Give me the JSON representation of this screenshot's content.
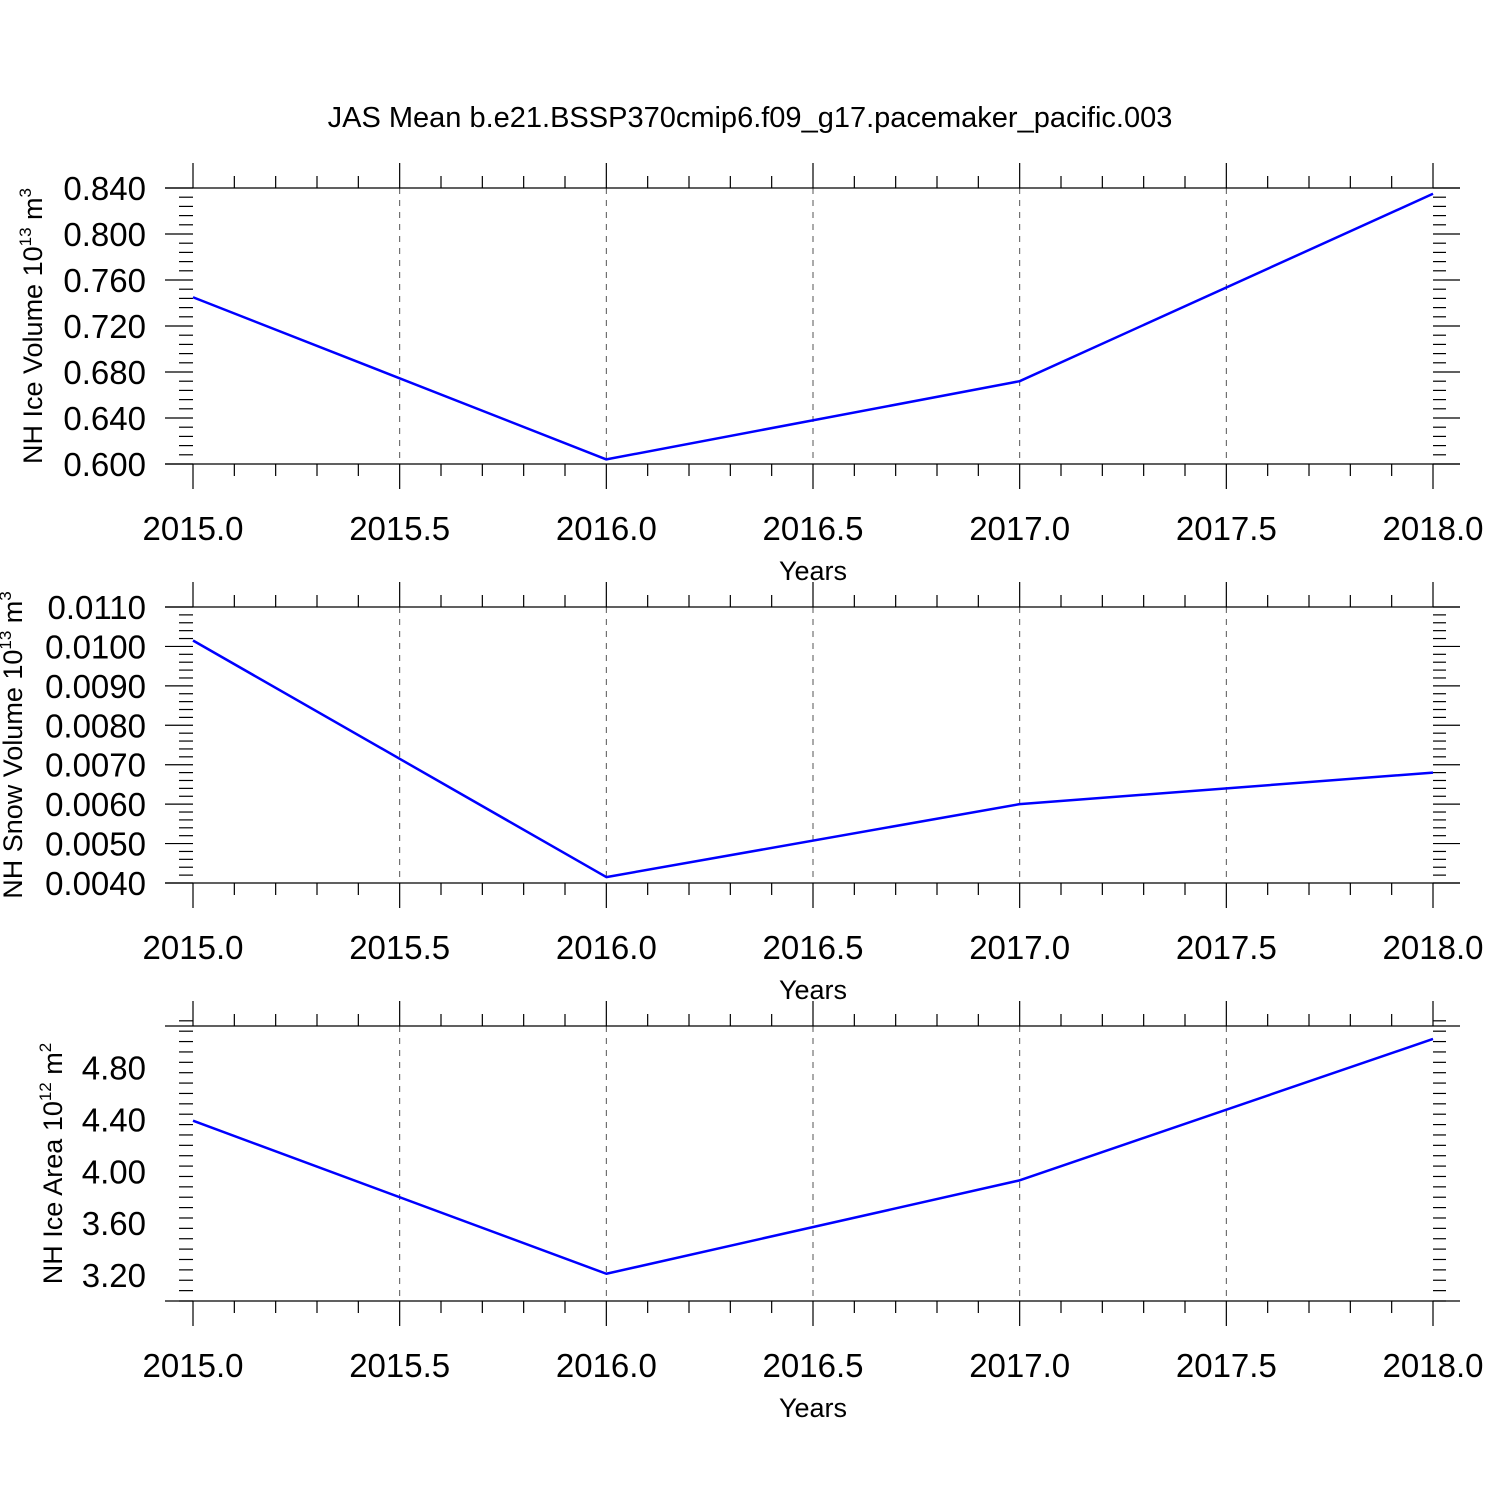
{
  "title": "JAS Mean b.e21.BSSP370cmip6.f09_g17.pacemaker_pacific.003",
  "colors": {
    "series": "#0000ff",
    "grid": "#555555",
    "axis": "#000000"
  },
  "chart_data": [
    {
      "type": "line",
      "xlabel": "Years",
      "ylabel": "NH Ice Volume 10",
      "ylabel_exp": "13",
      "ylabel_unit": "m",
      "ylabel_unit_exp": "3",
      "x": [
        2015.0,
        2016.0,
        2017.0,
        2018.0
      ],
      "series": [
        {
          "values": [
            0.745,
            0.604,
            0.672,
            0.835
          ]
        }
      ],
      "xlim": [
        2015.0,
        2018.0
      ],
      "ylim": [
        0.6,
        0.84
      ],
      "x_ticks": [
        "2015.0",
        "2015.5",
        "2016.0",
        "2016.5",
        "2017.0",
        "2017.5",
        "2018.0"
      ],
      "y_ticks": [
        "0.600",
        "0.640",
        "0.680",
        "0.720",
        "0.760",
        "0.800",
        "0.840"
      ],
      "grid": "vertical dashed at major x ticks"
    },
    {
      "type": "line",
      "xlabel": "Years",
      "ylabel": "NH Snow Volume 10",
      "ylabel_exp": "13",
      "ylabel_unit": "m",
      "ylabel_unit_exp": "3",
      "x": [
        2015.0,
        2016.0,
        2017.0,
        2018.0
      ],
      "series": [
        {
          "values": [
            0.01015,
            0.00415,
            0.006,
            0.0068
          ]
        }
      ],
      "xlim": [
        2015.0,
        2018.0
      ],
      "ylim": [
        0.004,
        0.011
      ],
      "x_ticks": [
        "2015.0",
        "2015.5",
        "2016.0",
        "2016.5",
        "2017.0",
        "2017.5",
        "2018.0"
      ],
      "y_ticks": [
        "0.0040",
        "0.0050",
        "0.0060",
        "0.0070",
        "0.0080",
        "0.0090",
        "0.0100",
        "0.0110"
      ],
      "grid": "vertical dashed at major x ticks"
    },
    {
      "type": "line",
      "xlabel": "Years",
      "ylabel": "NH Ice Area 10",
      "ylabel_exp": "12",
      "ylabel_unit": "m",
      "ylabel_unit_exp": "2",
      "x": [
        2015.0,
        2016.0,
        2017.0,
        2018.0
      ],
      "series": [
        {
          "values": [
            4.39,
            3.21,
            3.93,
            5.02
          ]
        }
      ],
      "xlim": [
        2015.0,
        2018.0
      ],
      "ylim": [
        3.0,
        5.12
      ],
      "x_ticks": [
        "2015.0",
        "2015.5",
        "2016.0",
        "2016.5",
        "2017.0",
        "2017.5",
        "2018.0"
      ],
      "y_ticks": [
        "3.20",
        "3.60",
        "4.00",
        "4.40",
        "4.80"
      ],
      "grid": "vertical dashed at major x ticks"
    }
  ]
}
